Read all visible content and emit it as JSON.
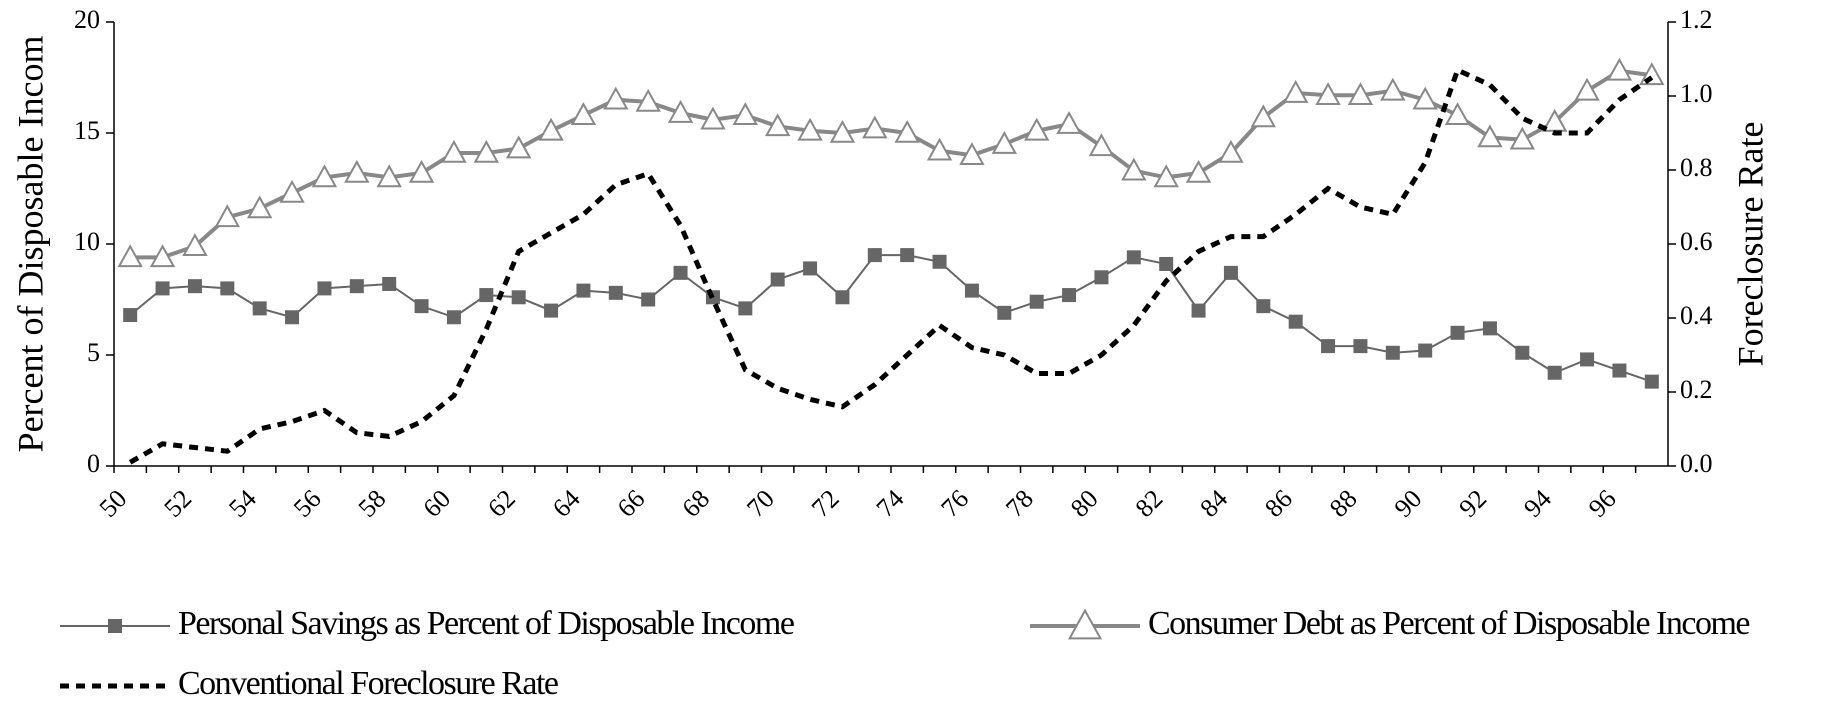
{
  "chart_data": {
    "type": "line",
    "categories": [
      "50",
      null,
      "52",
      null,
      "54",
      null,
      "56",
      null,
      "58",
      null,
      "60",
      null,
      "62",
      null,
      "64",
      null,
      "66",
      null,
      "68",
      null,
      "70",
      null,
      "72",
      null,
      "74",
      null,
      "76",
      null,
      "78",
      null,
      "80",
      null,
      "82",
      null,
      "84",
      null,
      "86",
      null,
      "88",
      null,
      "90",
      null,
      "92",
      null,
      "94",
      null,
      "96",
      null
    ],
    "y_label": "Percent of Disposable Incom",
    "y2_label": "Foreclosure Rate",
    "ylim": [
      0,
      20
    ],
    "yticks": [
      0,
      5,
      10,
      15,
      20
    ],
    "y2lim": [
      0,
      1.2
    ],
    "y2ticks": [
      {
        "value": 0,
        "label": "0.0"
      },
      0.2,
      0.4,
      0.6,
      0.8,
      {
        "value": 1,
        "label": "1.0"
      },
      1.2
    ],
    "series": [
      {
        "name": "Personal Savings as Percent of Disposable Income",
        "color": "#666666",
        "marker": "square",
        "values": [
          6.8,
          8.0,
          8.1,
          8.0,
          7.1,
          6.7,
          8.0,
          8.1,
          8.2,
          7.2,
          6.7,
          7.7,
          7.6,
          7.0,
          7.9,
          7.8,
          7.5,
          8.7,
          7.6,
          7.1,
          8.4,
          8.9,
          7.6,
          9.5,
          9.5,
          9.2,
          7.9,
          6.9,
          7.4,
          7.7,
          8.5,
          9.4,
          9.1,
          7.0,
          8.7,
          7.2,
          6.5,
          5.4,
          5.4,
          5.1,
          5.2,
          6.0,
          6.2,
          5.1,
          4.2,
          4.8,
          4.3,
          3.8
        ]
      },
      {
        "name": "Consumer Debt as Percent of Disposable Income",
        "color": "#888888",
        "marker": "triangle",
        "values": [
          9.4,
          9.4,
          9.9,
          11.2,
          11.6,
          12.3,
          13.0,
          13.2,
          13.0,
          13.2,
          14.1,
          14.1,
          14.3,
          15.1,
          15.8,
          16.5,
          16.4,
          15.9,
          15.6,
          15.8,
          15.3,
          15.1,
          15.0,
          15.2,
          15.0,
          14.2,
          14.0,
          14.5,
          15.1,
          15.4,
          14.4,
          13.3,
          13.0,
          13.2,
          14.1,
          15.7,
          16.8,
          16.7,
          16.7,
          16.9,
          16.5,
          15.8,
          14.8,
          14.7,
          15.5,
          16.9,
          17.8,
          17.6
        ]
      },
      {
        "name": "Conventional Foreclosure Rate",
        "color": "#000000",
        "marker": "none",
        "dash": true,
        "axis": "y2",
        "values": [
          0.01,
          0.06,
          0.05,
          0.04,
          0.1,
          0.12,
          0.15,
          0.09,
          0.08,
          0.12,
          0.19,
          0.37,
          0.58,
          0.63,
          0.68,
          0.76,
          0.79,
          0.65,
          0.45,
          0.26,
          0.21,
          0.18,
          0.16,
          0.22,
          0.3,
          0.38,
          0.32,
          0.3,
          0.25,
          0.25,
          0.3,
          0.38,
          0.5,
          0.58,
          0.62,
          0.62,
          0.68,
          0.75,
          0.7,
          0.68,
          0.82,
          1.07,
          1.03,
          0.94,
          0.9,
          0.9,
          0.99,
          1.05
        ]
      }
    ]
  }
}
